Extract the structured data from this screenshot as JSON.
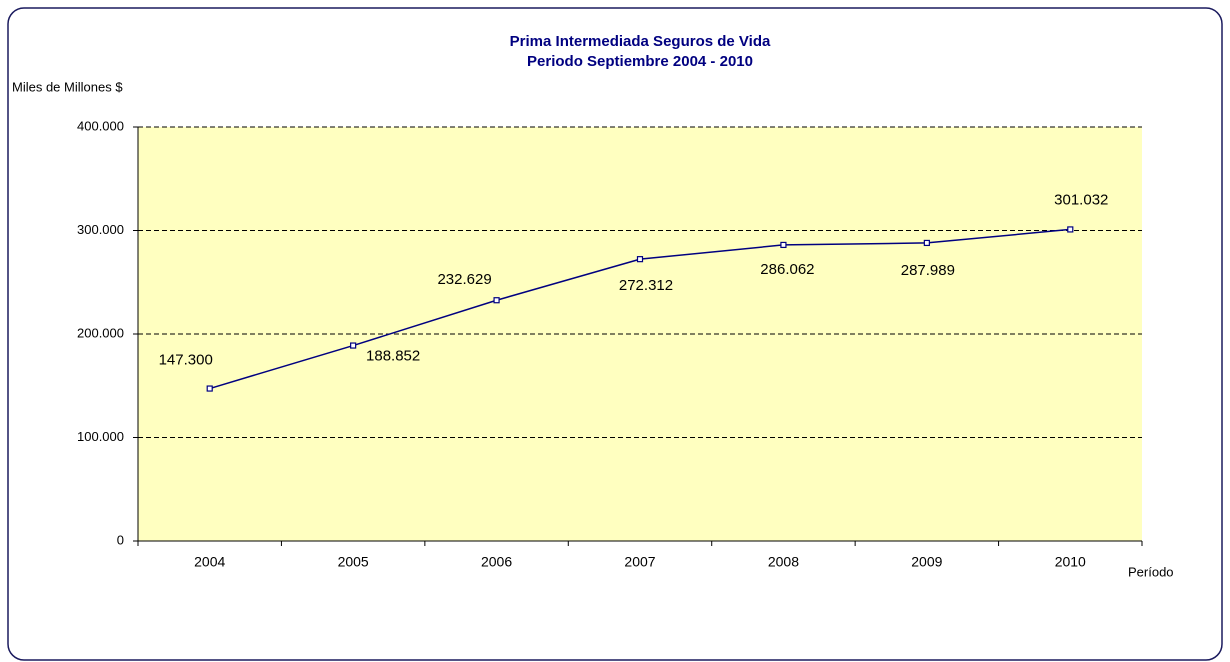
{
  "chart_data": {
    "type": "line",
    "title": "Prima Intermediada Seguros de Vida",
    "subtitle": "Periodo Septiembre 2004 - 2010",
    "ylabel": "Miles de Millones $",
    "xlabel": "Período",
    "categories": [
      "2004",
      "2005",
      "2006",
      "2007",
      "2008",
      "2009",
      "2010"
    ],
    "values": [
      147300,
      188852,
      232629,
      272312,
      286062,
      287989,
      301032
    ],
    "value_labels": [
      "147.300",
      "188.852",
      "232.629",
      "272.312",
      "286.062",
      "287.989",
      "301.032"
    ],
    "color": "#000080",
    "ylim": [
      0,
      400000
    ],
    "yticks": [
      0,
      {
        "value": 100000,
        "label": "100.000"
      },
      {
        "value": 200000,
        "label": "200.000"
      },
      {
        "value": 300000,
        "label": "300.000"
      },
      {
        "value": 400000,
        "label": "400.000"
      }
    ],
    "grid": true
  }
}
